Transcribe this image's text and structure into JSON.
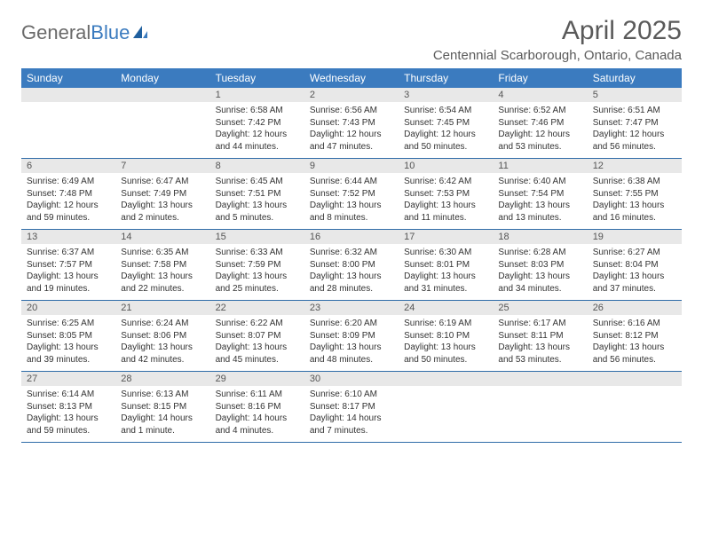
{
  "brand": {
    "part1": "General",
    "part2": "Blue"
  },
  "title": "April 2025",
  "location": "Centennial Scarborough, Ontario, Canada",
  "colors": {
    "header_bg": "#3b7bbf",
    "header_text": "#ffffff",
    "daynum_bg": "#e8e8e8",
    "row_border": "#2f6ca8",
    "text": "#333333"
  },
  "weekdays": [
    "Sunday",
    "Monday",
    "Tuesday",
    "Wednesday",
    "Thursday",
    "Friday",
    "Saturday"
  ],
  "weeks": [
    [
      null,
      null,
      {
        "n": "1",
        "sr": "Sunrise: 6:58 AM",
        "ss": "Sunset: 7:42 PM",
        "dl": "Daylight: 12 hours and 44 minutes."
      },
      {
        "n": "2",
        "sr": "Sunrise: 6:56 AM",
        "ss": "Sunset: 7:43 PM",
        "dl": "Daylight: 12 hours and 47 minutes."
      },
      {
        "n": "3",
        "sr": "Sunrise: 6:54 AM",
        "ss": "Sunset: 7:45 PM",
        "dl": "Daylight: 12 hours and 50 minutes."
      },
      {
        "n": "4",
        "sr": "Sunrise: 6:52 AM",
        "ss": "Sunset: 7:46 PM",
        "dl": "Daylight: 12 hours and 53 minutes."
      },
      {
        "n": "5",
        "sr": "Sunrise: 6:51 AM",
        "ss": "Sunset: 7:47 PM",
        "dl": "Daylight: 12 hours and 56 minutes."
      }
    ],
    [
      {
        "n": "6",
        "sr": "Sunrise: 6:49 AM",
        "ss": "Sunset: 7:48 PM",
        "dl": "Daylight: 12 hours and 59 minutes."
      },
      {
        "n": "7",
        "sr": "Sunrise: 6:47 AM",
        "ss": "Sunset: 7:49 PM",
        "dl": "Daylight: 13 hours and 2 minutes."
      },
      {
        "n": "8",
        "sr": "Sunrise: 6:45 AM",
        "ss": "Sunset: 7:51 PM",
        "dl": "Daylight: 13 hours and 5 minutes."
      },
      {
        "n": "9",
        "sr": "Sunrise: 6:44 AM",
        "ss": "Sunset: 7:52 PM",
        "dl": "Daylight: 13 hours and 8 minutes."
      },
      {
        "n": "10",
        "sr": "Sunrise: 6:42 AM",
        "ss": "Sunset: 7:53 PM",
        "dl": "Daylight: 13 hours and 11 minutes."
      },
      {
        "n": "11",
        "sr": "Sunrise: 6:40 AM",
        "ss": "Sunset: 7:54 PM",
        "dl": "Daylight: 13 hours and 13 minutes."
      },
      {
        "n": "12",
        "sr": "Sunrise: 6:38 AM",
        "ss": "Sunset: 7:55 PM",
        "dl": "Daylight: 13 hours and 16 minutes."
      }
    ],
    [
      {
        "n": "13",
        "sr": "Sunrise: 6:37 AM",
        "ss": "Sunset: 7:57 PM",
        "dl": "Daylight: 13 hours and 19 minutes."
      },
      {
        "n": "14",
        "sr": "Sunrise: 6:35 AM",
        "ss": "Sunset: 7:58 PM",
        "dl": "Daylight: 13 hours and 22 minutes."
      },
      {
        "n": "15",
        "sr": "Sunrise: 6:33 AM",
        "ss": "Sunset: 7:59 PM",
        "dl": "Daylight: 13 hours and 25 minutes."
      },
      {
        "n": "16",
        "sr": "Sunrise: 6:32 AM",
        "ss": "Sunset: 8:00 PM",
        "dl": "Daylight: 13 hours and 28 minutes."
      },
      {
        "n": "17",
        "sr": "Sunrise: 6:30 AM",
        "ss": "Sunset: 8:01 PM",
        "dl": "Daylight: 13 hours and 31 minutes."
      },
      {
        "n": "18",
        "sr": "Sunrise: 6:28 AM",
        "ss": "Sunset: 8:03 PM",
        "dl": "Daylight: 13 hours and 34 minutes."
      },
      {
        "n": "19",
        "sr": "Sunrise: 6:27 AM",
        "ss": "Sunset: 8:04 PM",
        "dl": "Daylight: 13 hours and 37 minutes."
      }
    ],
    [
      {
        "n": "20",
        "sr": "Sunrise: 6:25 AM",
        "ss": "Sunset: 8:05 PM",
        "dl": "Daylight: 13 hours and 39 minutes."
      },
      {
        "n": "21",
        "sr": "Sunrise: 6:24 AM",
        "ss": "Sunset: 8:06 PM",
        "dl": "Daylight: 13 hours and 42 minutes."
      },
      {
        "n": "22",
        "sr": "Sunrise: 6:22 AM",
        "ss": "Sunset: 8:07 PM",
        "dl": "Daylight: 13 hours and 45 minutes."
      },
      {
        "n": "23",
        "sr": "Sunrise: 6:20 AM",
        "ss": "Sunset: 8:09 PM",
        "dl": "Daylight: 13 hours and 48 minutes."
      },
      {
        "n": "24",
        "sr": "Sunrise: 6:19 AM",
        "ss": "Sunset: 8:10 PM",
        "dl": "Daylight: 13 hours and 50 minutes."
      },
      {
        "n": "25",
        "sr": "Sunrise: 6:17 AM",
        "ss": "Sunset: 8:11 PM",
        "dl": "Daylight: 13 hours and 53 minutes."
      },
      {
        "n": "26",
        "sr": "Sunrise: 6:16 AM",
        "ss": "Sunset: 8:12 PM",
        "dl": "Daylight: 13 hours and 56 minutes."
      }
    ],
    [
      {
        "n": "27",
        "sr": "Sunrise: 6:14 AM",
        "ss": "Sunset: 8:13 PM",
        "dl": "Daylight: 13 hours and 59 minutes."
      },
      {
        "n": "28",
        "sr": "Sunrise: 6:13 AM",
        "ss": "Sunset: 8:15 PM",
        "dl": "Daylight: 14 hours and 1 minute."
      },
      {
        "n": "29",
        "sr": "Sunrise: 6:11 AM",
        "ss": "Sunset: 8:16 PM",
        "dl": "Daylight: 14 hours and 4 minutes."
      },
      {
        "n": "30",
        "sr": "Sunrise: 6:10 AM",
        "ss": "Sunset: 8:17 PM",
        "dl": "Daylight: 14 hours and 7 minutes."
      },
      null,
      null,
      null
    ]
  ]
}
